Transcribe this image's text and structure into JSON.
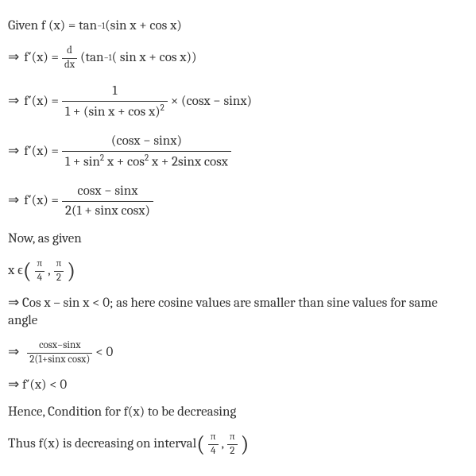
{
  "text_color": "#333333",
  "background_color": "#ffffff",
  "font_family": "Cambria, Georgia, serif",
  "base_fontsize": 17,
  "small_fontsize": 13,
  "superscript_fontsize": 11,
  "lines": {
    "l1": "Given f (x) = tan",
    "l1_sup": "−1",
    "l1_b": " (sin x + cos x)",
    "l2_lhs": "f′(x) = ",
    "l2_d": "d",
    "l2_dx": "dx",
    "l2_rhs_a": "(tan",
    "l2_rhs_sup": "−1",
    "l2_rhs_b": "( sin x  +  cos x))",
    "l3_lhs": " f′(x)  =  ",
    "l3_num": "1",
    "l3_den_a": "1 + (sin x  +  cos x)",
    "l3_den_sup": "2",
    "l3_rhs": " × (cosx − sinx)",
    "l4_lhs": " f′(x)  =  ",
    "l4_num": "(cosx − sinx)",
    "l4_den_a": "1 +  sin",
    "l4_den_sup1": "2",
    "l4_den_b": " x  +  cos",
    "l4_den_sup2": "2",
    "l4_den_c": " x + 2sinx cosx",
    "l5_lhs": " f′(x)  =  ",
    "l5_num": "cosx − sinx",
    "l5_den": "2(1 + sinx cosx)",
    "l6": "Now, as given",
    "l7_a": "x ϵ ",
    "l7_pi1n": "π",
    "l7_pi1d": "4",
    "l7_comma": ",",
    "l7_pi2n": "π",
    "l7_pi2d": "2",
    "l8": "⇒ Cos x – sin x < 0; as here cosine values are smaller than sine values for same angle",
    "l9_num": "cosx−sinx",
    "l9_den": "2(1+sinx cosx)",
    "l9_rhs": " < 0",
    "l10": "⇒ f′(x) < 0",
    "l11": "Hence, Condition for f(x) to be decreasing",
    "l12_a": "Thus f(x) is decreasing on interval ",
    "l12_pi1n": "π",
    "l12_pi1d": "4",
    "l12_comma": ",",
    "l12_pi2n": "π",
    "l12_pi2d": "2",
    "arrow": "⇒"
  }
}
